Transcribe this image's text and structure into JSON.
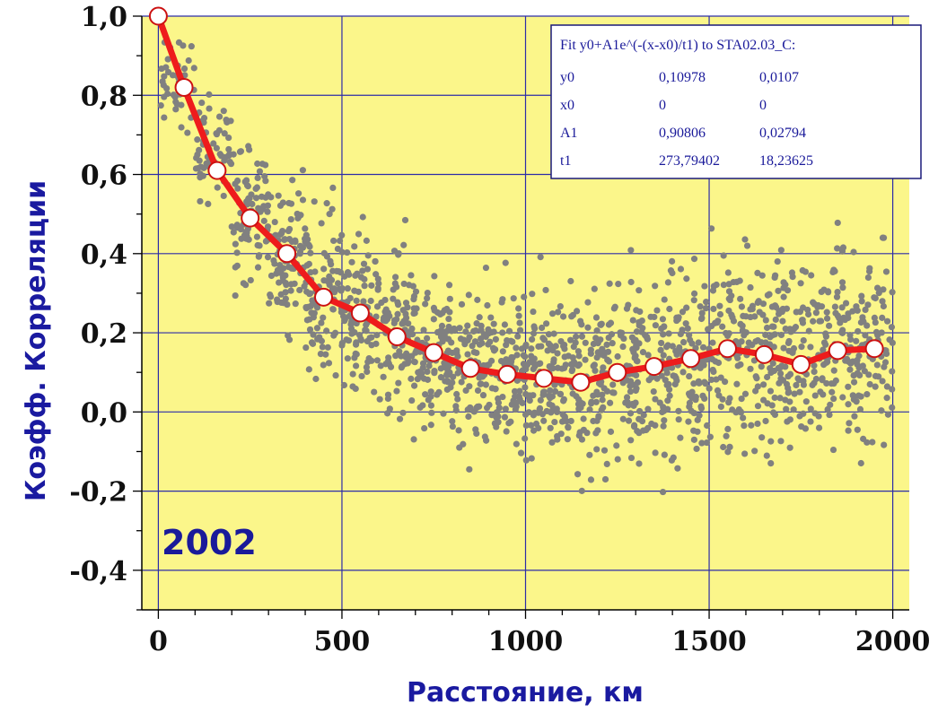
{
  "colors": {
    "plot_bg": "#fbf68a",
    "grid": "#2c2ca8",
    "scatter": "#808080",
    "fit_line": "#ee1c1c",
    "marker_fill": "#ffffff",
    "marker_stroke": "#cc1111",
    "text_blue": "#1a1aa0"
  },
  "chart_data": {
    "type": "scatter",
    "xlabel": "Расстояние, км",
    "ylabel": "Коэфф. Корреляции",
    "annotation": "2002",
    "xlim": [
      -45,
      2045
    ],
    "ylim": [
      -0.5,
      1.0
    ],
    "grid": true,
    "x_ticks": [
      0,
      500,
      1000,
      1500,
      2000
    ],
    "x_tick_labels": [
      "0",
      "500",
      "1000",
      "1500",
      "2000"
    ],
    "y_ticks": [
      1.0,
      0.8,
      0.6,
      0.4,
      0.2,
      0.0,
      -0.2,
      -0.4
    ],
    "y_tick_labels": [
      "1,0",
      "0,8",
      "0,6",
      "0,4",
      "0,2",
      "0,0",
      "-0,2",
      "-0,4"
    ],
    "series": [
      {
        "type": "scatter",
        "note": "raw pairwise correlations (~1500 grey points), approximated as binned centres with spread",
        "bins": [
          {
            "x": [
              0,
              100
            ],
            "center": 0.86,
            "spread": 0.1,
            "count": 40
          },
          {
            "x": [
              100,
              200
            ],
            "center": 0.66,
            "spread": 0.12,
            "count": 60
          },
          {
            "x": [
              200,
              300
            ],
            "center": 0.5,
            "spread": 0.14,
            "count": 80
          },
          {
            "x": [
              300,
              400
            ],
            "center": 0.39,
            "spread": 0.16,
            "count": 90
          },
          {
            "x": [
              400,
              500
            ],
            "center": 0.3,
            "spread": 0.17,
            "count": 100
          },
          {
            "x": [
              500,
              600
            ],
            "center": 0.24,
            "spread": 0.17,
            "count": 100
          },
          {
            "x": [
              600,
              700
            ],
            "center": 0.19,
            "spread": 0.17,
            "count": 100
          },
          {
            "x": [
              700,
              800
            ],
            "center": 0.15,
            "spread": 0.17,
            "count": 100
          },
          {
            "x": [
              800,
              900
            ],
            "center": 0.11,
            "spread": 0.17,
            "count": 100
          },
          {
            "x": [
              900,
              1000
            ],
            "center": 0.1,
            "spread": 0.18,
            "count": 100
          },
          {
            "x": [
              1000,
              1100
            ],
            "center": 0.09,
            "spread": 0.18,
            "count": 100
          },
          {
            "x": [
              1100,
              1200
            ],
            "center": 0.08,
            "spread": 0.19,
            "count": 100
          },
          {
            "x": [
              1200,
              1300
            ],
            "center": 0.1,
            "spread": 0.19,
            "count": 95
          },
          {
            "x": [
              1300,
              1400
            ],
            "center": 0.11,
            "spread": 0.2,
            "count": 95
          },
          {
            "x": [
              1400,
              1500
            ],
            "center": 0.13,
            "spread": 0.21,
            "count": 95
          },
          {
            "x": [
              1500,
              1600
            ],
            "center": 0.16,
            "spread": 0.22,
            "count": 95
          },
          {
            "x": [
              1600,
              1700
            ],
            "center": 0.15,
            "spread": 0.22,
            "count": 90
          },
          {
            "x": [
              1700,
              1800
            ],
            "center": 0.13,
            "spread": 0.22,
            "count": 90
          },
          {
            "x": [
              1800,
              1900
            ],
            "center": 0.16,
            "spread": 0.22,
            "count": 90
          },
          {
            "x": [
              1900,
              2000
            ],
            "center": 0.16,
            "spread": 0.22,
            "count": 90
          }
        ]
      },
      {
        "type": "line",
        "note": "binned mean correlation (open circle markers joined by red line)",
        "x": [
          0,
          70,
          160,
          250,
          350,
          450,
          550,
          650,
          750,
          850,
          950,
          1050,
          1150,
          1250,
          1350,
          1450,
          1550,
          1650,
          1750,
          1850,
          1950
        ],
        "y": [
          1.0,
          0.82,
          0.61,
          0.49,
          0.4,
          0.29,
          0.25,
          0.19,
          0.15,
          0.11,
          0.095,
          0.085,
          0.075,
          0.1,
          0.115,
          0.135,
          0.16,
          0.145,
          0.12,
          0.155,
          0.16
        ]
      }
    ],
    "fit_box": {
      "title": "Fit y0+A1e^(-(x-x0)/t1) to STA02.03_C:",
      "rows": [
        {
          "param": "y0",
          "value": "0,10978",
          "error": "0,0107"
        },
        {
          "param": "x0",
          "value": "0",
          "error": "0"
        },
        {
          "param": "A1",
          "value": "0,90806",
          "error": "0,02794"
        },
        {
          "param": "t1",
          "value": "273,79402",
          "error": "18,23625"
        }
      ],
      "position": "top-right"
    }
  }
}
